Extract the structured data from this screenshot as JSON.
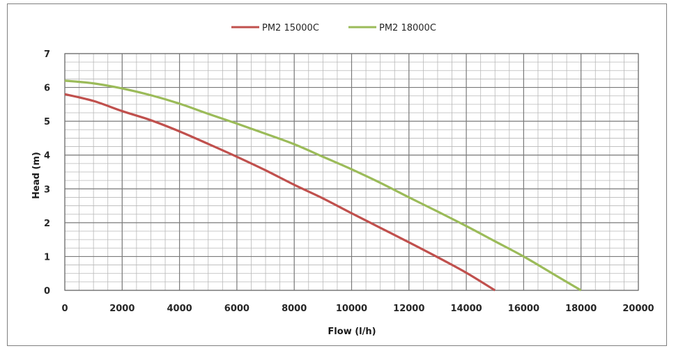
{
  "chart_data": {
    "type": "line",
    "xlabel": "Flow (l/h)",
    "ylabel": "Head (m)",
    "xlim": [
      0,
      20000
    ],
    "ylim": [
      0,
      7
    ],
    "x_ticks": [
      "0",
      "2000",
      "4000",
      "6000",
      "8000",
      "10000",
      "12000",
      "14000",
      "16000",
      "18000",
      "20000"
    ],
    "y_ticks": [
      "0",
      "1",
      "2",
      "3",
      "4",
      "5",
      "6",
      "7"
    ],
    "grid": true,
    "legend_position": "top",
    "series": [
      {
        "name": "PM2 15000C",
        "color": "#c0504d",
        "x": [
          0,
          1000,
          2000,
          3000,
          4000,
          5000,
          6000,
          7000,
          8000,
          9000,
          10000,
          11000,
          12000,
          13000,
          14000,
          15000
        ],
        "y": [
          5.8,
          5.6,
          5.3,
          5.03,
          4.7,
          4.33,
          3.95,
          3.55,
          3.12,
          2.72,
          2.28,
          1.85,
          1.42,
          0.98,
          0.52,
          0.0
        ]
      },
      {
        "name": "PM2 18000C",
        "color": "#9bbb59",
        "x": [
          0,
          1000,
          2000,
          3000,
          4000,
          5000,
          6000,
          7000,
          8000,
          9000,
          10000,
          11000,
          12000,
          13000,
          14000,
          15000,
          16000,
          17000,
          18000
        ],
        "y": [
          6.2,
          6.12,
          5.97,
          5.77,
          5.52,
          5.22,
          4.93,
          4.63,
          4.32,
          3.95,
          3.58,
          3.18,
          2.75,
          2.33,
          1.9,
          1.45,
          1.0,
          0.5,
          0.0
        ]
      }
    ]
  }
}
